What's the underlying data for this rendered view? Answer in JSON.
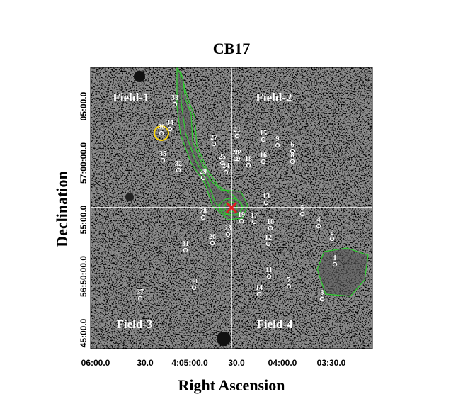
{
  "figure": {
    "title": "CB17",
    "x_label": "Right Ascension",
    "y_label": "Declination",
    "x_ticks": [
      "06:00.0",
      "30.0",
      "4:05:00.0",
      "30.0",
      "04:00.0",
      "03:30.0"
    ],
    "y_ticks": [
      "05:00.0",
      "57:00:00.0",
      "55:00.0",
      "56:50:00.0",
      "45:00.0"
    ],
    "fields": [
      "Field-1",
      "Field-2",
      "Field-3",
      "Field-4"
    ],
    "stars": [
      "33",
      "34",
      "36",
      "35",
      "32",
      "27",
      "29",
      "21",
      "15",
      "9",
      "6",
      "8",
      "20",
      "22",
      "25",
      "24",
      "18",
      "16",
      "13",
      "5",
      "4",
      "2",
      "28",
      "19",
      "17",
      "10",
      "12",
      "23",
      "26",
      "31",
      "1",
      "11",
      "7",
      "14",
      "3",
      "30",
      "37"
    ]
  }
}
